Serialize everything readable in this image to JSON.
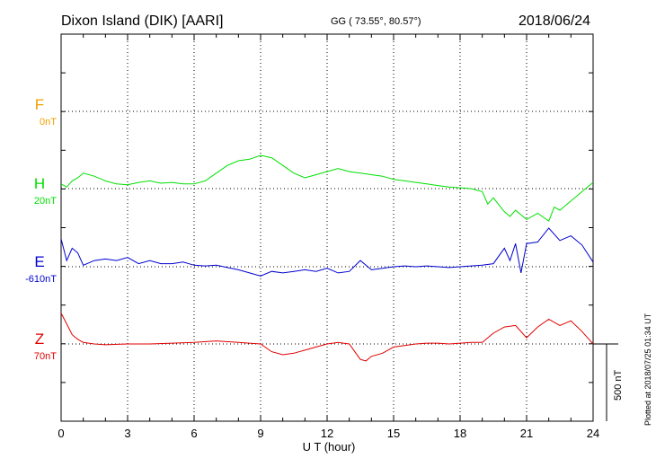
{
  "header": {
    "station": "Dixon Island (DIK)  [AARI]",
    "coords": "GG ( 73.55°,  80.57°)",
    "date": "2018/06/24"
  },
  "side_note": "Plotted at 2018/07/25 01:34 UT",
  "scale_label": "500 nT",
  "chart_data": {
    "type": "line",
    "xlabel": "U T (hour)",
    "xlim": [
      0,
      24
    ],
    "xticks": [
      "0",
      "3",
      "6",
      "9",
      "12",
      "15",
      "18",
      "21",
      "24"
    ],
    "colors": {
      "F": "#f0a000",
      "H": "#00e000",
      "E": "#0000d0",
      "Z": "#e00000"
    },
    "components": [
      {
        "name": "F",
        "baseline": "0nT",
        "x": [],
        "values": []
      },
      {
        "name": "H",
        "baseline": "20nT",
        "x": [
          0,
          0.25,
          0.5,
          0.75,
          1,
          1.5,
          2,
          2.5,
          3,
          3.5,
          4,
          4.5,
          5,
          5.5,
          6,
          6.5,
          7,
          7.5,
          8,
          8.5,
          9,
          9.5,
          10,
          10.5,
          11,
          11.5,
          12,
          12.5,
          13,
          13.5,
          14,
          14.5,
          15,
          15.5,
          16,
          16.5,
          17,
          17.5,
          18,
          18.5,
          19,
          19.25,
          19.5,
          20,
          20.25,
          20.5,
          21,
          21.5,
          22,
          22.25,
          22.5,
          23,
          23.5,
          24
        ],
        "values": [
          30,
          10,
          50,
          70,
          100,
          80,
          50,
          30,
          25,
          40,
          50,
          35,
          40,
          30,
          30,
          50,
          100,
          150,
          180,
          190,
          215,
          200,
          150,
          100,
          70,
          90,
          110,
          130,
          110,
          100,
          90,
          80,
          60,
          50,
          40,
          30,
          20,
          10,
          5,
          0,
          -20,
          -100,
          -60,
          -150,
          -180,
          -140,
          -200,
          -160,
          -210,
          -120,
          -140,
          -80,
          -20,
          40
        ]
      },
      {
        "name": "E",
        "baseline": "-610nT",
        "x": [
          0,
          0.25,
          0.5,
          0.75,
          1,
          1.5,
          2,
          2.5,
          3,
          3.5,
          4,
          4.5,
          5,
          5.5,
          6,
          6.5,
          7,
          7.5,
          8,
          8.5,
          9,
          9.5,
          10,
          10.5,
          11,
          11.5,
          12,
          12.5,
          13,
          13.5,
          14,
          14.5,
          15,
          15.5,
          16,
          16.5,
          17,
          17.5,
          18,
          18.5,
          19,
          19.5,
          20,
          20.25,
          20.5,
          20.75,
          21,
          21.5,
          22,
          22.5,
          23,
          23.5,
          24
        ],
        "values": [
          180,
          40,
          120,
          90,
          10,
          40,
          50,
          40,
          60,
          20,
          40,
          20,
          20,
          30,
          10,
          5,
          10,
          -5,
          -20,
          -40,
          -60,
          -30,
          -40,
          -30,
          -20,
          -30,
          -10,
          -40,
          -30,
          40,
          -20,
          -10,
          0,
          5,
          0,
          5,
          0,
          -5,
          0,
          5,
          10,
          20,
          120,
          40,
          150,
          -40,
          150,
          160,
          250,
          170,
          200,
          140,
          30
        ]
      },
      {
        "name": "Z",
        "baseline": "70nT",
        "x": [
          0,
          0.25,
          0.5,
          0.75,
          1,
          1.5,
          2,
          3,
          4,
          5,
          6,
          7,
          8,
          9,
          9.5,
          10,
          10.5,
          11,
          11.5,
          12,
          12.5,
          13,
          13.25,
          13.5,
          13.75,
          14,
          14.5,
          15,
          15.5,
          16,
          16.5,
          17,
          17.5,
          18,
          18.5,
          19,
          19.5,
          20,
          20.5,
          21,
          21.5,
          22,
          22.5,
          23,
          23.5,
          24
        ],
        "values": [
          200,
          130,
          60,
          30,
          10,
          0,
          -5,
          0,
          0,
          5,
          10,
          20,
          10,
          0,
          -50,
          -70,
          -60,
          -40,
          -20,
          0,
          10,
          0,
          -50,
          -100,
          -110,
          -80,
          -60,
          -20,
          -10,
          0,
          5,
          5,
          0,
          5,
          10,
          10,
          70,
          110,
          120,
          40,
          110,
          160,
          120,
          150,
          80,
          0
        ]
      }
    ]
  }
}
